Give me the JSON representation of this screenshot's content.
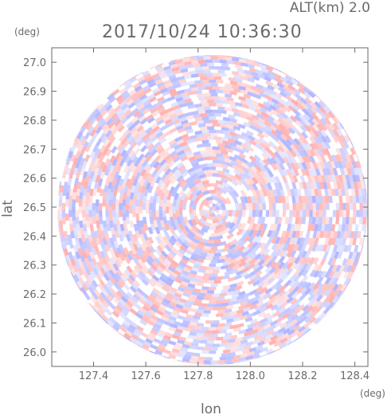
{
  "header": {
    "altitude_label": "ALT(km) 2.0",
    "timestamp": "2017/10/24 10:36:30"
  },
  "chart_data": {
    "type": "heatmap",
    "title": "2017/10/24 10:36:30",
    "subtitle": "ALT(km) 2.0",
    "xlabel": "lon",
    "ylabel": "lat",
    "x_unit": "(deg)",
    "y_unit": "(deg)",
    "xlim": [
      127.24,
      128.45
    ],
    "ylim": [
      25.95,
      27.05
    ],
    "x_ticks": [
      "127.4",
      "127.6",
      "127.8",
      "128.0",
      "128.2",
      "128.4"
    ],
    "y_ticks": [
      "26.0",
      "26.1",
      "26.2",
      "26.3",
      "26.4",
      "26.5",
      "26.6",
      "26.7",
      "26.8",
      "26.9",
      "27.0"
    ],
    "radar_center": {
      "lon": 127.855,
      "lat": 26.49
    },
    "radar_range_deg_lat": 0.535,
    "colors": {
      "positive": "#ff9a9a",
      "negative": "#9aa0ff",
      "frame": "#6a6a6a"
    },
    "grid": false,
    "legend": "none"
  }
}
